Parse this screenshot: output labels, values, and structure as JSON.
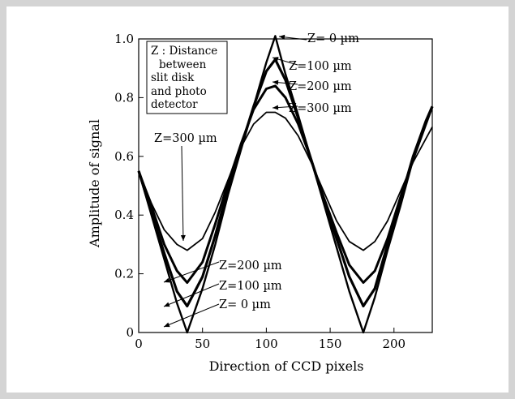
{
  "chart_data": {
    "type": "line",
    "xlabel": "Direction of CCD pixels",
    "ylabel": "Amplitude of signal",
    "xlim": [
      0,
      230
    ],
    "ylim": [
      0,
      1.0
    ],
    "x_ticks": [
      "0",
      "50",
      "100",
      "150",
      "200"
    ],
    "y_ticks": [
      "0",
      "0.2",
      "0.4",
      "0.6",
      "0.8",
      "1.0"
    ],
    "grid": false,
    "legend_box": {
      "lines": [
        "Z : Distance",
        "between",
        "slit disk",
        "and photo",
        "detector"
      ],
      "placement": "top-left"
    },
    "series": [
      {
        "name": "Z=   0 µm",
        "x": [
          0,
          10,
          20,
          30,
          38,
          50,
          60,
          70,
          80,
          90,
          100,
          107,
          115,
          125,
          135,
          145,
          155,
          165,
          176,
          185,
          195,
          205,
          215,
          225,
          230
        ],
        "y": [
          0.55,
          0.4,
          0.25,
          0.1,
          0.0,
          0.15,
          0.3,
          0.47,
          0.62,
          0.77,
          0.92,
          1.01,
          0.88,
          0.74,
          0.59,
          0.44,
          0.29,
          0.14,
          0.0,
          0.12,
          0.28,
          0.43,
          0.59,
          0.72,
          0.77
        ]
      },
      {
        "name": "Z=100 µm",
        "x": [
          0,
          10,
          20,
          30,
          38,
          50,
          60,
          70,
          80,
          90,
          100,
          107,
          115,
          125,
          135,
          145,
          155,
          165,
          176,
          185,
          195,
          205,
          215,
          225,
          230
        ],
        "y": [
          0.55,
          0.41,
          0.27,
          0.14,
          0.09,
          0.19,
          0.33,
          0.49,
          0.63,
          0.77,
          0.89,
          0.93,
          0.86,
          0.73,
          0.59,
          0.45,
          0.32,
          0.19,
          0.09,
          0.15,
          0.3,
          0.45,
          0.6,
          0.72,
          0.77
        ]
      },
      {
        "name": "Z=200 µm",
        "x": [
          0,
          10,
          20,
          30,
          38,
          50,
          60,
          70,
          80,
          90,
          100,
          107,
          115,
          125,
          135,
          145,
          155,
          165,
          176,
          185,
          195,
          205,
          215,
          225,
          230
        ],
        "y": [
          0.55,
          0.43,
          0.3,
          0.21,
          0.17,
          0.24,
          0.37,
          0.51,
          0.64,
          0.76,
          0.83,
          0.84,
          0.8,
          0.71,
          0.59,
          0.46,
          0.34,
          0.23,
          0.17,
          0.21,
          0.32,
          0.46,
          0.59,
          0.71,
          0.77
        ]
      },
      {
        "name": "Z=300 µm",
        "x": [
          0,
          10,
          20,
          30,
          38,
          50,
          60,
          70,
          80,
          90,
          100,
          107,
          115,
          125,
          135,
          145,
          155,
          165,
          176,
          185,
          195,
          205,
          215,
          225,
          230
        ],
        "y": [
          0.55,
          0.44,
          0.35,
          0.3,
          0.28,
          0.32,
          0.41,
          0.52,
          0.63,
          0.71,
          0.75,
          0.75,
          0.73,
          0.67,
          0.58,
          0.48,
          0.38,
          0.31,
          0.28,
          0.31,
          0.38,
          0.48,
          0.58,
          0.66,
          0.7
        ]
      }
    ],
    "annotations": [
      {
        "text": "Z=   0 µm",
        "x": 108,
        "y": 1.01
      },
      {
        "text": "Z=100 µm",
        "x": 108,
        "y": 0.93
      },
      {
        "text": "Z=200 µm",
        "x": 108,
        "y": 0.84
      },
      {
        "text": "Z=300 µm",
        "x": 108,
        "y": 0.75
      },
      {
        "text": "Z=300 µm",
        "x": 38,
        "y": 0.28
      },
      {
        "text": "Z=200 µm",
        "x": 38,
        "y": 0.17
      },
      {
        "text": "Z=100 µm",
        "x": 38,
        "y": 0.09
      },
      {
        "text": "Z=   0 µm",
        "x": 38,
        "y": 0.0
      }
    ]
  }
}
